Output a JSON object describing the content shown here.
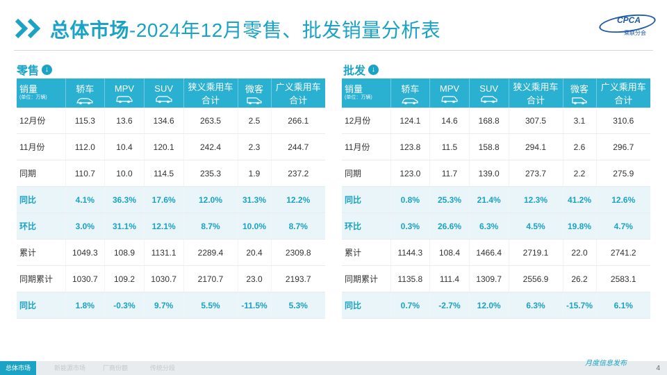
{
  "header": {
    "title_bold": "总体市场",
    "title_rest": "-2024年12月零售、批发销量分析表",
    "logo_text": "CPCA",
    "logo_sub": "乘联分会"
  },
  "retail": {
    "label": "零售",
    "header": {
      "row_label": "销量",
      "unit": "(单位：万辆)",
      "cols": [
        "轿车",
        "MPV",
        "SUV"
      ],
      "col4": [
        "狭义乘用车",
        "合计"
      ],
      "col5": "微客",
      "col6": [
        "广义乘用车",
        "合计"
      ]
    },
    "rows": [
      {
        "label": "12月份",
        "values": [
          "115.3",
          "13.6",
          "134.6",
          "263.5",
          "2.5",
          "266.1"
        ],
        "highlight": false
      },
      {
        "label": "11月份",
        "values": [
          "112.0",
          "10.4",
          "120.1",
          "242.4",
          "2.3",
          "244.7"
        ],
        "highlight": false
      },
      {
        "label": "同期",
        "values": [
          "110.7",
          "10.0",
          "114.5",
          "235.3",
          "1.9",
          "237.2"
        ],
        "highlight": false
      },
      {
        "label": "同比",
        "values": [
          "4.1%",
          "36.3%",
          "17.6%",
          "12.0%",
          "31.3%",
          "12.2%"
        ],
        "highlight": true
      },
      {
        "label": "环比",
        "values": [
          "3.0%",
          "31.1%",
          "12.1%",
          "8.7%",
          "10.0%",
          "8.7%"
        ],
        "highlight": true
      },
      {
        "label": "累计",
        "values": [
          "1049.3",
          "108.9",
          "1131.1",
          "2289.4",
          "20.4",
          "2309.8"
        ],
        "highlight": false
      },
      {
        "label": "同期累计",
        "values": [
          "1030.7",
          "109.2",
          "1030.7",
          "2170.7",
          "23.0",
          "2193.7"
        ],
        "highlight": false
      },
      {
        "label": "同比",
        "values": [
          "1.8%",
          "-0.3%",
          "9.7%",
          "5.5%",
          "-11.5%",
          "5.3%"
        ],
        "highlight": true
      }
    ]
  },
  "wholesale": {
    "label": "批发",
    "header": {
      "row_label": "销量",
      "unit": "(单位：万辆)",
      "cols": [
        "轿车",
        "MPV",
        "SUV"
      ],
      "col4": [
        "狭义乘用车",
        "合计"
      ],
      "col5": "微客",
      "col6": [
        "广义乘用车",
        "合计"
      ]
    },
    "rows": [
      {
        "label": "12月份",
        "values": [
          "124.1",
          "14.6",
          "168.8",
          "307.5",
          "3.1",
          "310.6"
        ],
        "highlight": false
      },
      {
        "label": "11月份",
        "values": [
          "123.8",
          "11.5",
          "158.8",
          "294.1",
          "2.6",
          "296.7"
        ],
        "highlight": false
      },
      {
        "label": "同期",
        "values": [
          "123.0",
          "11.7",
          "139.0",
          "273.7",
          "2.2",
          "275.9"
        ],
        "highlight": false
      },
      {
        "label": "同比",
        "values": [
          "0.8%",
          "25.3%",
          "21.4%",
          "12.3%",
          "41.2%",
          "12.6%"
        ],
        "highlight": true
      },
      {
        "label": "环比",
        "values": [
          "0.3%",
          "26.6%",
          "6.3%",
          "4.5%",
          "19.8%",
          "4.7%"
        ],
        "highlight": true
      },
      {
        "label": "累计",
        "values": [
          "1144.3",
          "108.4",
          "1466.4",
          "2719.1",
          "22.0",
          "2741.2"
        ],
        "highlight": false
      },
      {
        "label": "同期累计",
        "values": [
          "1135.8",
          "111.4",
          "1309.7",
          "2556.9",
          "26.2",
          "2583.1"
        ],
        "highlight": false
      },
      {
        "label": "同比",
        "values": [
          "0.7%",
          "-2.7%",
          "12.0%",
          "6.3%",
          "-15.7%",
          "6.1%"
        ],
        "highlight": true
      }
    ]
  },
  "footer": {
    "tabs": [
      "总体市场",
      "新能源市场",
      "厂商份额",
      "传统分段"
    ],
    "active_tab": 0,
    "text": "月度信息发布",
    "page": "4"
  },
  "colors": {
    "accent": "#1aa3c4",
    "header_bg": "#2ab0d0",
    "highlight_row": "#eaf5fa"
  }
}
